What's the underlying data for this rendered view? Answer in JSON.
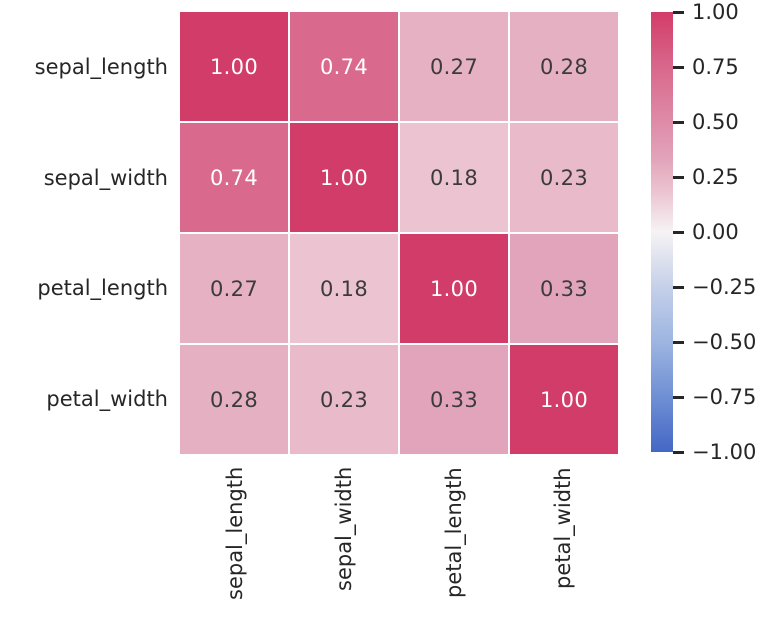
{
  "figure": {
    "background": "#ffffff",
    "text_color": "#262626"
  },
  "chart_data": {
    "type": "heatmap",
    "title": "",
    "categories": [
      "sepal_length",
      "sepal_width",
      "petal_length",
      "petal_width"
    ],
    "row_labels": [
      "sepal_length",
      "sepal_width",
      "petal_length",
      "petal_width"
    ],
    "col_labels": [
      "sepal_length",
      "sepal_width",
      "petal_length",
      "petal_width"
    ],
    "matrix": [
      [
        1.0,
        0.74,
        0.27,
        0.28
      ],
      [
        0.74,
        1.0,
        0.18,
        0.23
      ],
      [
        0.27,
        0.18,
        1.0,
        0.33
      ],
      [
        0.28,
        0.23,
        0.33,
        1.0
      ]
    ],
    "cell_labels": [
      [
        "1.00",
        "0.74",
        "0.27",
        "0.28"
      ],
      [
        "0.74",
        "1.00",
        "0.18",
        "0.23"
      ],
      [
        "0.27",
        "0.18",
        "1.00",
        "0.33"
      ],
      [
        "0.28",
        "0.23",
        "0.33",
        "1.00"
      ]
    ],
    "value_range": [
      -1,
      1
    ],
    "grid_line_color": "#ffffff",
    "annotation_text_light": "#ffffff",
    "annotation_text_dark": "#3b3b3b",
    "colormap_stops": [
      {
        "v": -1.0,
        "color": "#4467c5"
      },
      {
        "v": -0.75,
        "color": "#6f8fd4"
      },
      {
        "v": -0.5,
        "color": "#9db5e1"
      },
      {
        "v": -0.25,
        "color": "#c5d0e9"
      },
      {
        "v": 0.0,
        "color": "#f6f3f4"
      },
      {
        "v": 0.18,
        "color": "#ecc4d1"
      },
      {
        "v": 0.27,
        "color": "#e6b2c3"
      },
      {
        "v": 0.33,
        "color": "#e2a4ba"
      },
      {
        "v": 0.74,
        "color": "#d9698d"
      },
      {
        "v": 1.0,
        "color": "#d23c68"
      }
    ],
    "colorbar": {
      "tick_values": [
        1.0,
        0.75,
        0.5,
        0.25,
        0.0,
        -0.25,
        -0.5,
        -0.75,
        -1.0
      ],
      "tick_labels": [
        "1.00",
        "0.75",
        "0.50",
        "0.25",
        "0.00",
        "−0.25",
        "−0.50",
        "−0.75",
        "−1.00"
      ]
    }
  }
}
